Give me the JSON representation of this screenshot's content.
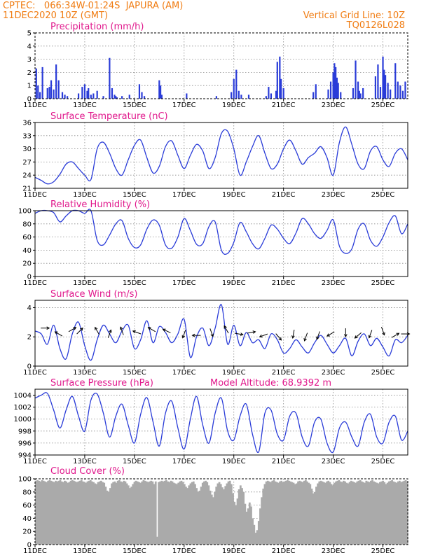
{
  "header": {
    "source_line": "CPTEC:   066:34W-01:24S  JAPURA (AM)",
    "run_line": "11DEC2020 10Z (GMT)",
    "grid_note": "Vertical Grid Line: 10Z",
    "code": "TQ0126L028"
  },
  "x_axis": {
    "start": "2020-12-11T10:00Z",
    "end": "2020-12-26T10:00Z",
    "tick_labels": [
      "11DEC",
      "13DEC",
      "15DEC",
      "17DEC",
      "19DEC",
      "21DEC",
      "23DEC",
      "25DEC"
    ],
    "tick_days_from_start": [
      0,
      2,
      4,
      6,
      8,
      10,
      12,
      14
    ],
    "total_days": 15,
    "vertical_grid_time": "10Z"
  },
  "colors": {
    "line": "#2a3cd8",
    "cloud": "#aaaaaa",
    "header": "#f07c12",
    "title": "#e0188c"
  },
  "chart_data": [
    {
      "id": "precip",
      "type": "bar",
      "title": "Precipitation (mm/h)",
      "ylim": [
        0,
        5
      ],
      "yticks": [
        0,
        1,
        2,
        3,
        4,
        5
      ],
      "x_unit": "days from 11DEC2020 10Z",
      "x": [
        0.05,
        0.12,
        0.2,
        0.3,
        0.5,
        0.58,
        0.65,
        0.75,
        0.85,
        0.95,
        1.1,
        1.2,
        1.3,
        1.75,
        1.9,
        2.0,
        2.1,
        2.15,
        2.25,
        2.35,
        2.5,
        2.75,
        3.0,
        3.1,
        3.2,
        3.25,
        3.3,
        3.5,
        3.8,
        4.2,
        4.3,
        4.4,
        5.0,
        5.05,
        5.1,
        6.1,
        7.3,
        7.9,
        8.0,
        8.1,
        8.2,
        8.3,
        8.6,
        9.3,
        9.4,
        9.5,
        9.7,
        9.75,
        9.85,
        9.9,
        10.0,
        11.2,
        11.3,
        11.8,
        11.9,
        12.0,
        12.05,
        12.1,
        12.15,
        12.2,
        12.3,
        12.8,
        12.9,
        13.0,
        13.05,
        13.1,
        13.2,
        13.7,
        13.8,
        13.9,
        14.0,
        14.05,
        14.1,
        14.2,
        14.3,
        14.5,
        14.6,
        14.7,
        14.8,
        14.9
      ],
      "values": [
        2.3,
        1.0,
        0.5,
        2.4,
        0.8,
        0.9,
        1.4,
        0.7,
        2.6,
        1.4,
        0.5,
        0.3,
        0.2,
        0.4,
        0.9,
        1.1,
        0.6,
        0.8,
        0.3,
        0.4,
        0.6,
        0.2,
        3.1,
        0.8,
        0.3,
        0.2,
        0.1,
        0.2,
        0.3,
        1.1,
        0.5,
        0.2,
        1.4,
        1.0,
        0.3,
        0.4,
        0.2,
        0.5,
        1.5,
        2.2,
        0.6,
        0.3,
        0.3,
        0.2,
        0.9,
        0.4,
        0.6,
        2.8,
        3.2,
        1.5,
        0.8,
        0.5,
        1.1,
        0.7,
        1.3,
        2.0,
        2.7,
        2.4,
        1.6,
        1.2,
        0.5,
        0.8,
        2.9,
        1.3,
        0.6,
        0.4,
        0.8,
        1.7,
        2.6,
        0.9,
        3.2,
        2.2,
        1.8,
        1.2,
        0.7,
        2.7,
        1.3,
        1.0,
        0.6,
        1.3
      ]
    },
    {
      "id": "temperature",
      "type": "line",
      "title": "Surface Temperature (nC)",
      "ylim": [
        21,
        36
      ],
      "yticks": [
        21,
        24,
        27,
        30,
        33,
        36
      ],
      "x_unit": "days from 11DEC2020 10Z",
      "x": [
        0,
        0.25,
        0.5,
        0.75,
        1,
        1.25,
        1.5,
        1.75,
        2,
        2.25,
        2.5,
        2.75,
        3,
        3.25,
        3.5,
        3.75,
        4,
        4.25,
        4.5,
        4.75,
        5,
        5.25,
        5.5,
        5.75,
        6,
        6.25,
        6.5,
        6.75,
        7,
        7.25,
        7.5,
        7.75,
        8,
        8.25,
        8.5,
        8.75,
        9,
        9.25,
        9.5,
        9.75,
        10,
        10.25,
        10.5,
        10.75,
        11,
        11.25,
        11.5,
        11.75,
        12,
        12.25,
        12.5,
        12.75,
        13,
        13.25,
        13.5,
        13.75,
        14,
        14.25,
        14.5,
        14.75,
        15
      ],
      "values": [
        23.5,
        22.8,
        22.0,
        22.5,
        24.2,
        26.5,
        27.0,
        25.5,
        24.0,
        23.0,
        30.0,
        31.5,
        29.0,
        25.5,
        24.0,
        27.5,
        30.8,
        32.0,
        28.0,
        24.5,
        26.0,
        30.5,
        31.8,
        28.5,
        25.5,
        28.5,
        31.0,
        29.5,
        25.5,
        28.0,
        33.5,
        34.0,
        30.0,
        24.0,
        27.0,
        30.5,
        33.0,
        29.0,
        25.5,
        26.5,
        30.0,
        32.0,
        29.5,
        26.5,
        28.0,
        29.0,
        30.5,
        28.0,
        24.0,
        31.5,
        35.0,
        31.0,
        26.5,
        25.5,
        29.5,
        30.5,
        27.5,
        26.0,
        29.0,
        30.0,
        27.5
      ]
    },
    {
      "id": "humidity",
      "type": "line",
      "title": "Relative Humidity (%)",
      "ylim": [
        0,
        100
      ],
      "yticks": [
        0,
        20,
        40,
        60,
        80,
        100
      ],
      "x_unit": "days from 11DEC2020 10Z",
      "x": [
        0,
        0.25,
        0.5,
        0.75,
        1,
        1.25,
        1.5,
        1.75,
        2,
        2.25,
        2.5,
        2.75,
        3,
        3.25,
        3.5,
        3.75,
        4,
        4.25,
        4.5,
        4.75,
        5,
        5.25,
        5.5,
        5.75,
        6,
        6.25,
        6.5,
        6.75,
        7,
        7.25,
        7.5,
        7.75,
        8,
        8.25,
        8.5,
        8.75,
        9,
        9.25,
        9.5,
        9.75,
        10,
        10.25,
        10.5,
        10.75,
        11,
        11.25,
        11.5,
        11.75,
        12,
        12.25,
        12.5,
        12.75,
        13,
        13.25,
        13.5,
        13.75,
        14,
        14.25,
        14.5,
        14.75,
        15
      ],
      "values": [
        96,
        100,
        100,
        97,
        83,
        92,
        100,
        100,
        96,
        100,
        55,
        48,
        63,
        80,
        85,
        58,
        44,
        48,
        72,
        86,
        78,
        48,
        43,
        60,
        88,
        70,
        49,
        50,
        76,
        83,
        40,
        35,
        52,
        82,
        68,
        50,
        42,
        58,
        78,
        72,
        58,
        50,
        66,
        88,
        80,
        65,
        58,
        70,
        86,
        46,
        35,
        42,
        72,
        80,
        55,
        46,
        60,
        82,
        92,
        65,
        80
      ]
    },
    {
      "id": "wind",
      "type": "line",
      "title": "Surface Wind (m/s)",
      "ylim": [
        0,
        4.5
      ],
      "yticks": [
        0,
        2,
        4
      ],
      "x_unit": "days from 11DEC2020 10Z",
      "x": [
        0,
        0.25,
        0.5,
        0.75,
        1,
        1.25,
        1.5,
        1.75,
        2,
        2.25,
        2.5,
        2.75,
        3,
        3.25,
        3.5,
        3.75,
        4,
        4.25,
        4.5,
        4.75,
        5,
        5.25,
        5.5,
        5.75,
        6,
        6.25,
        6.5,
        6.75,
        7,
        7.25,
        7.5,
        7.75,
        8,
        8.25,
        8.5,
        8.75,
        9,
        9.25,
        9.5,
        9.75,
        10,
        10.25,
        10.5,
        10.75,
        11,
        11.25,
        11.5,
        11.75,
        12,
        12.25,
        12.5,
        12.75,
        13,
        13.25,
        13.5,
        13.75,
        14,
        14.25,
        14.5,
        14.75,
        15
      ],
      "values": [
        2.4,
        2.2,
        1.5,
        2.8,
        1.2,
        0.5,
        2.2,
        3.0,
        1.4,
        0.4,
        1.8,
        2.8,
        2.2,
        1.6,
        2.4,
        2.8,
        1.2,
        1.8,
        3.1,
        1.6,
        2.7,
        2.3,
        1.6,
        2.2,
        3.2,
        0.6,
        2.0,
        2.6,
        1.4,
        2.6,
        4.2,
        1.5,
        2.8,
        1.4,
        2.3,
        1.6,
        1.8,
        1.2,
        2.2,
        1.8,
        0.9,
        1.2,
        1.8,
        1.3,
        0.9,
        1.6,
        2.1,
        1.5,
        0.9,
        1.4,
        1.9,
        0.7,
        1.7,
        2.2,
        1.4,
        1.9,
        1.3,
        0.7,
        1.8,
        1.6,
        2.1
      ],
      "arrows": [
        {
          "day": 0.4,
          "speed": 2.6,
          "dir_deg": 90
        },
        {
          "day": 0.95,
          "speed": 2.2,
          "dir_deg": 300
        },
        {
          "day": 1.5,
          "speed": 2.5,
          "dir_deg": 60
        },
        {
          "day": 1.8,
          "speed": 2.4,
          "dir_deg": 45
        },
        {
          "day": 2.5,
          "speed": 2.4,
          "dir_deg": 330
        },
        {
          "day": 3.0,
          "speed": 2.2,
          "dir_deg": 20
        },
        {
          "day": 3.5,
          "speed": 2.4,
          "dir_deg": 340
        },
        {
          "day": 4.1,
          "speed": 2.3,
          "dir_deg": 290
        },
        {
          "day": 4.7,
          "speed": 2.5,
          "dir_deg": 300
        },
        {
          "day": 5.3,
          "speed": 2.4,
          "dir_deg": 295
        },
        {
          "day": 6.0,
          "speed": 2.2,
          "dir_deg": 200
        },
        {
          "day": 6.5,
          "speed": 2.1,
          "dir_deg": 270
        },
        {
          "day": 7.1,
          "speed": 2.3,
          "dir_deg": 160
        },
        {
          "day": 7.7,
          "speed": 2.5,
          "dir_deg": 330
        },
        {
          "day": 8.2,
          "speed": 2.2,
          "dir_deg": 100
        },
        {
          "day": 8.7,
          "speed": 2.3,
          "dir_deg": 80
        },
        {
          "day": 9.2,
          "speed": 2.1,
          "dir_deg": 250
        },
        {
          "day": 9.8,
          "speed": 2.0,
          "dir_deg": 140
        },
        {
          "day": 10.4,
          "speed": 2.2,
          "dir_deg": 190
        },
        {
          "day": 10.9,
          "speed": 2.0,
          "dir_deg": 200
        },
        {
          "day": 11.4,
          "speed": 2.1,
          "dir_deg": 200
        },
        {
          "day": 11.9,
          "speed": 2.2,
          "dir_deg": 240
        },
        {
          "day": 12.5,
          "speed": 2.3,
          "dir_deg": 180
        },
        {
          "day": 13.0,
          "speed": 2.1,
          "dir_deg": 230
        },
        {
          "day": 13.5,
          "speed": 2.2,
          "dir_deg": 200
        },
        {
          "day": 14.0,
          "speed": 2.4,
          "dir_deg": 160
        },
        {
          "day": 14.5,
          "speed": 2.1,
          "dir_deg": 60
        },
        {
          "day": 14.9,
          "speed": 2.2,
          "dir_deg": 90
        }
      ]
    },
    {
      "id": "pressure",
      "type": "line",
      "title": "Surface Pressure (hPa)",
      "annotation": "Model Altitude: 68.9392 m",
      "ylim": [
        994,
        1005
      ],
      "yticks": [
        994,
        996,
        998,
        1000,
        1002,
        1004
      ],
      "x_unit": "days from 11DEC2020 10Z",
      "x": [
        0,
        0.25,
        0.5,
        0.75,
        1,
        1.25,
        1.5,
        1.75,
        2,
        2.25,
        2.5,
        2.75,
        3,
        3.25,
        3.5,
        3.75,
        4,
        4.25,
        4.5,
        4.75,
        5,
        5.25,
        5.5,
        5.75,
        6,
        6.25,
        6.5,
        6.75,
        7,
        7.25,
        7.5,
        7.75,
        8,
        8.25,
        8.5,
        8.75,
        9,
        9.25,
        9.5,
        9.75,
        10,
        10.25,
        10.5,
        10.75,
        11,
        11.25,
        11.5,
        11.75,
        12,
        12.25,
        12.5,
        12.75,
        13,
        13.25,
        13.5,
        13.75,
        14,
        14.25,
        14.5,
        14.75,
        15
      ],
      "values": [
        1003.5,
        1004.0,
        1004.3,
        1001.5,
        998.5,
        1001.5,
        1003.8,
        1000.5,
        998.0,
        1003.2,
        1004.2,
        1001.0,
        997.0,
        1000.5,
        1002.5,
        999.0,
        996.0,
        1000.8,
        1003.6,
        999.5,
        995.5,
        1001.0,
        1003.0,
        998.5,
        995.0,
        1000.0,
        1003.8,
        999.0,
        996.0,
        1001.0,
        1003.5,
        998.0,
        996.5,
        1000.5,
        1002.5,
        997.5,
        994.5,
        1001.0,
        1001.5,
        997.5,
        996.5,
        1000.5,
        1001.0,
        997.0,
        995.5,
        999.5,
        1000.0,
        996.0,
        994.5,
        998.5,
        999.5,
        997.0,
        995.5,
        999.5,
        1000.8,
        997.0,
        996.0,
        999.5,
        1000.5,
        996.5,
        998.0
      ]
    },
    {
      "id": "cloud",
      "type": "bar",
      "title": "Cloud Cover (%)",
      "ylim": [
        0,
        100
      ],
      "yticks": [
        0,
        20,
        40,
        60,
        80,
        100
      ],
      "x_unit": "days from 11DEC2020 10Z",
      "x_range": [
        0,
        15
      ],
      "values": [
        97,
        98,
        97,
        96,
        98,
        97,
        96,
        95,
        97,
        98,
        97,
        96,
        95,
        97,
        96,
        97,
        98,
        96,
        95,
        97,
        96,
        94,
        95,
        97,
        98,
        97,
        96,
        95,
        96,
        97,
        98,
        96,
        95,
        94,
        96,
        97,
        98,
        96,
        95,
        93,
        92,
        95,
        96,
        97,
        95,
        94,
        88,
        82,
        80,
        86,
        93,
        95,
        96,
        94,
        97,
        98,
        96,
        95,
        97,
        96,
        93,
        90,
        86,
        88,
        92,
        95,
        97,
        96,
        95,
        94,
        96,
        98,
        97,
        96,
        95,
        96,
        97,
        96,
        92,
        96,
        12,
        95,
        96,
        97,
        96,
        97,
        98,
        96,
        95,
        97,
        96,
        94,
        93,
        92,
        94,
        96,
        97,
        95,
        92,
        88,
        86,
        90,
        93,
        95,
        96,
        92,
        86,
        80,
        82,
        88,
        94,
        96,
        97,
        95,
        90,
        82,
        76,
        72,
        80,
        88,
        93,
        95,
        92,
        87,
        84,
        89,
        93,
        96,
        97,
        92,
        78,
        65,
        60,
        70,
        84,
        90,
        86,
        80,
        62,
        50,
        55,
        64,
        58,
        40,
        30,
        18,
        22,
        36,
        55,
        72,
        85,
        92,
        96,
        97,
        96,
        95,
        97,
        98,
        96,
        95,
        94,
        96,
        97,
        95,
        96,
        97,
        98,
        97,
        96,
        95,
        94,
        92,
        93,
        96,
        97,
        96,
        95,
        97,
        98,
        96,
        94,
        92,
        85,
        78,
        80,
        88,
        93,
        96,
        97,
        96,
        95,
        94,
        96,
        97,
        95,
        92,
        90,
        94,
        96,
        97,
        98,
        96,
        95,
        97,
        96,
        94,
        93,
        95,
        97,
        96,
        95,
        94,
        96,
        97,
        98,
        96,
        95,
        94,
        97,
        96,
        95,
        97,
        98,
        96,
        95,
        94,
        93,
        95,
        96,
        97,
        95,
        92,
        94,
        96,
        97,
        98,
        96,
        95,
        94,
        96,
        97,
        95,
        96,
        97,
        98,
        96
      ]
    }
  ]
}
